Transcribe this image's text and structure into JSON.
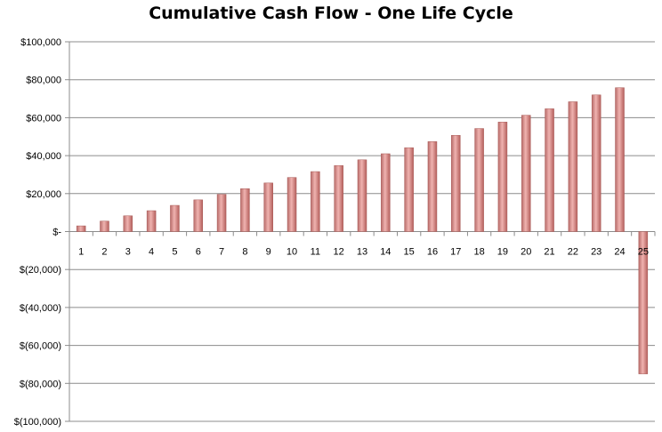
{
  "chart_data": {
    "type": "bar",
    "title": "Cumulative Cash Flow - One Life Cycle",
    "xlabel": "",
    "ylabel": "",
    "ylim": [
      -100000,
      100000
    ],
    "y_tick_step": 20000,
    "y_tick_labels": [
      "$(100,000)",
      "$(80,000)",
      "$(60,000)",
      "$(40,000)",
      "$(20,000)",
      "$-",
      "$20,000",
      "$40,000",
      "$60,000",
      "$80,000",
      "$100,000"
    ],
    "grid": true,
    "legend": "none",
    "bar_color": "#d98a87",
    "categories": [
      "1",
      "2",
      "3",
      "4",
      "5",
      "6",
      "7",
      "8",
      "9",
      "10",
      "11",
      "12",
      "13",
      "14",
      "15",
      "16",
      "17",
      "18",
      "19",
      "20",
      "21",
      "22",
      "23",
      "24",
      "25"
    ],
    "values": [
      3000,
      5500,
      8300,
      11000,
      13800,
      16700,
      19600,
      22600,
      25600,
      28500,
      31600,
      34800,
      37800,
      41000,
      44200,
      47400,
      50700,
      54300,
      57700,
      61300,
      64700,
      68400,
      72000,
      75800,
      -75000
    ]
  }
}
